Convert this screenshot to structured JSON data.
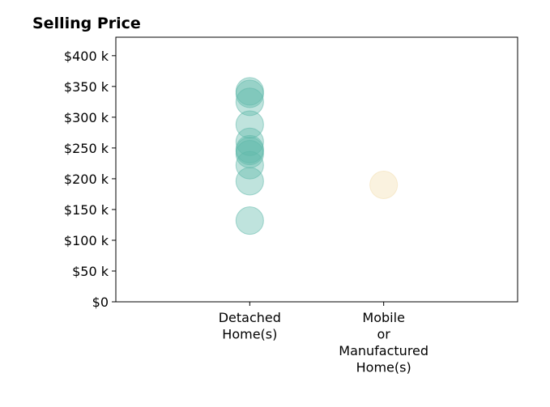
{
  "chart_data": {
    "type": "scatter",
    "title": "Selling Price",
    "xlabel": "",
    "ylabel": "",
    "ylim": [
      0,
      430000
    ],
    "y_ticks": [
      {
        "value": 0,
        "label": "$0"
      },
      {
        "value": 50000,
        "label": "$50 k"
      },
      {
        "value": 100000,
        "label": "$100 k"
      },
      {
        "value": 150000,
        "label": "$150 k"
      },
      {
        "value": 200000,
        "label": "$200 k"
      },
      {
        "value": 250000,
        "label": "$250 k"
      },
      {
        "value": 300000,
        "label": "$300 k"
      },
      {
        "value": 350000,
        "label": "$350 k"
      },
      {
        "value": 400000,
        "label": "$400 k"
      }
    ],
    "categories": [
      {
        "label_lines": [
          "Detached",
          "Home(s)"
        ]
      },
      {
        "label_lines": [
          "Mobile",
          "or",
          "Manufactured",
          "Home(s)"
        ]
      }
    ],
    "series": [
      {
        "category_index": 0,
        "color": "#5fb8aa",
        "values": [
          342000,
          338000,
          325000,
          288000,
          260000,
          248000,
          245000,
          240000,
          222000,
          196000,
          132000
        ]
      },
      {
        "category_index": 1,
        "color": "#f3deb0",
        "values": [
          190000
        ]
      }
    ],
    "grid": false,
    "legend": "none"
  }
}
